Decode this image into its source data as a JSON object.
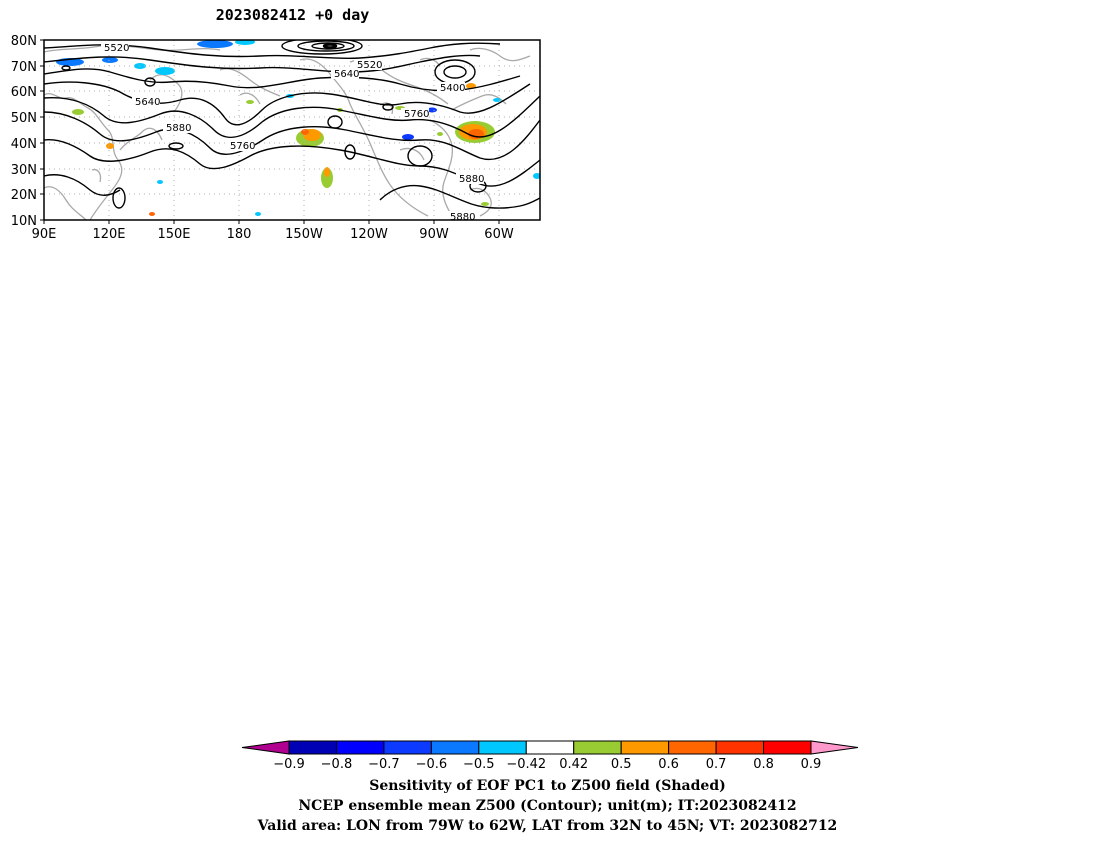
{
  "title": "2023082412 +0 day",
  "map": {
    "lat_ticks": [
      "80N",
      "70N",
      "60N",
      "50N",
      "40N",
      "30N",
      "20N",
      "10N"
    ],
    "lon_ticks": [
      "90E",
      "120E",
      "150E",
      "180",
      "150W",
      "120W",
      "90W",
      "60W"
    ],
    "contour_labels": [
      "5520",
      "5520",
      "5640",
      "5640",
      "5400",
      "5760",
      "5880",
      "5760",
      "5880",
      "5880"
    ]
  },
  "colorbar": {
    "tick_labels": [
      "-0.9",
      "-0.8",
      "-0.7",
      "-0.6",
      "-0.5",
      "-0.42",
      "0.42",
      "0.5",
      "0.6",
      "0.7",
      "0.8",
      "0.9"
    ],
    "colors": [
      "#b0008f",
      "#0000b4",
      "#0000ff",
      "#0c3bff",
      "#0a78ff",
      "#00c8ff",
      "#ffffff",
      "#99cc33",
      "#ff9900",
      "#ff6600",
      "#ff3300",
      "#ff0000",
      "#ff99cc"
    ]
  },
  "caption": {
    "line1": "Sensitivity of EOF PC1 to Z500 field (Shaded)",
    "line2": "NCEP ensemble mean Z500 (Contour); unit(m); IT:2023082412",
    "line3": "Valid area: LON from 79W to 62W, LAT from 32N to 45N; VT: 2023082712"
  }
}
